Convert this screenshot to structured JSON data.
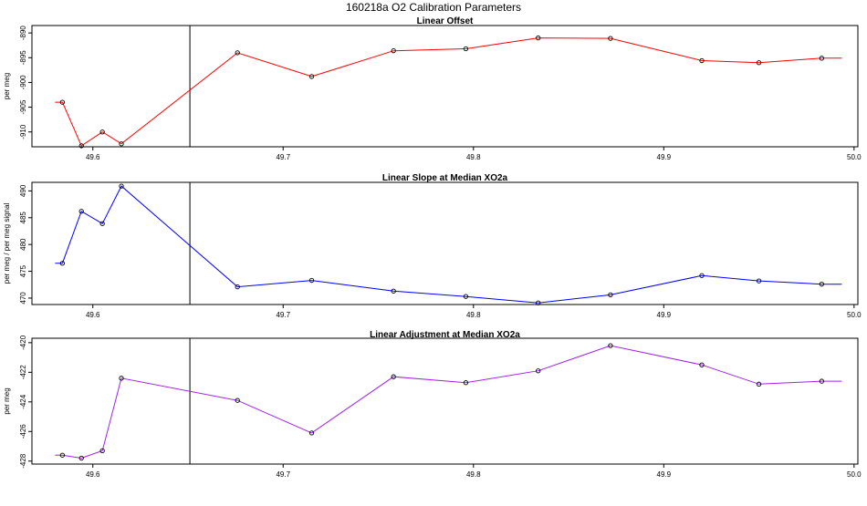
{
  "figure_title": "160218a   O2 Calibration Parameters",
  "vertical_marker_x": 49.651,
  "chart_data": [
    {
      "type": "line",
      "title": "Linear Offset",
      "xlabel": "",
      "ylabel": "per meg",
      "color": "#ff0000",
      "x_ticks": [
        "49.6",
        "49.7",
        "49.8",
        "49.9",
        "50.0"
      ],
      "y_ticks": [
        "-890",
        "-895",
        "-900",
        "-905",
        "-910"
      ],
      "xlim": [
        49.568,
        50.002
      ],
      "ylim": [
        -913.0,
        -888.5
      ],
      "grid": false,
      "x": [
        49.584,
        49.594,
        49.605,
        49.615,
        49.676,
        49.715,
        49.758,
        49.796,
        49.834,
        49.872,
        49.92,
        49.95,
        49.983
      ],
      "y": [
        -904.0,
        -912.8,
        -910.0,
        -912.4,
        -894.0,
        -898.8,
        -893.6,
        -893.2,
        -891.0,
        -891.1,
        -895.6,
        -896.0,
        -895.1
      ]
    },
    {
      "type": "line",
      "title": "Linear Slope at Median XO2a",
      "xlabel": "",
      "ylabel": "per meg / per meg signal",
      "color": "#0000ff",
      "x_ticks": [
        "49.6",
        "49.7",
        "49.8",
        "49.9",
        "50.0"
      ],
      "y_ticks": [
        "490",
        "485",
        "480",
        "475",
        "470"
      ],
      "xlim": [
        49.568,
        50.002
      ],
      "ylim": [
        468.8,
        491.6
      ],
      "grid": false,
      "x": [
        49.584,
        49.594,
        49.605,
        49.615,
        49.676,
        49.715,
        49.758,
        49.796,
        49.834,
        49.872,
        49.92,
        49.95,
        49.983
      ],
      "y": [
        476.5,
        486.2,
        483.9,
        490.9,
        472.1,
        473.3,
        471.3,
        470.3,
        469.1,
        470.6,
        474.2,
        473.2,
        472.6
      ]
    },
    {
      "type": "line",
      "title": "Linear Adjustment at Median XO2a",
      "xlabel": "",
      "ylabel": "per meg",
      "color": "#a020f0",
      "x_ticks": [
        "49.6",
        "49.7",
        "49.8",
        "49.9",
        "50.0"
      ],
      "y_ticks": [
        "-420",
        "-422",
        "-424",
        "-426",
        "-428"
      ],
      "xlim": [
        49.568,
        50.002
      ],
      "ylim": [
        -428.2,
        -419.7
      ],
      "grid": false,
      "x": [
        49.584,
        49.594,
        49.605,
        49.615,
        49.676,
        49.715,
        49.758,
        49.796,
        49.834,
        49.872,
        49.92,
        49.95,
        49.983
      ],
      "y": [
        -427.6,
        -427.8,
        -427.3,
        -422.4,
        -423.9,
        -426.1,
        -422.3,
        -422.7,
        -421.9,
        -420.2,
        -421.5,
        -422.8,
        -422.6
      ]
    }
  ]
}
